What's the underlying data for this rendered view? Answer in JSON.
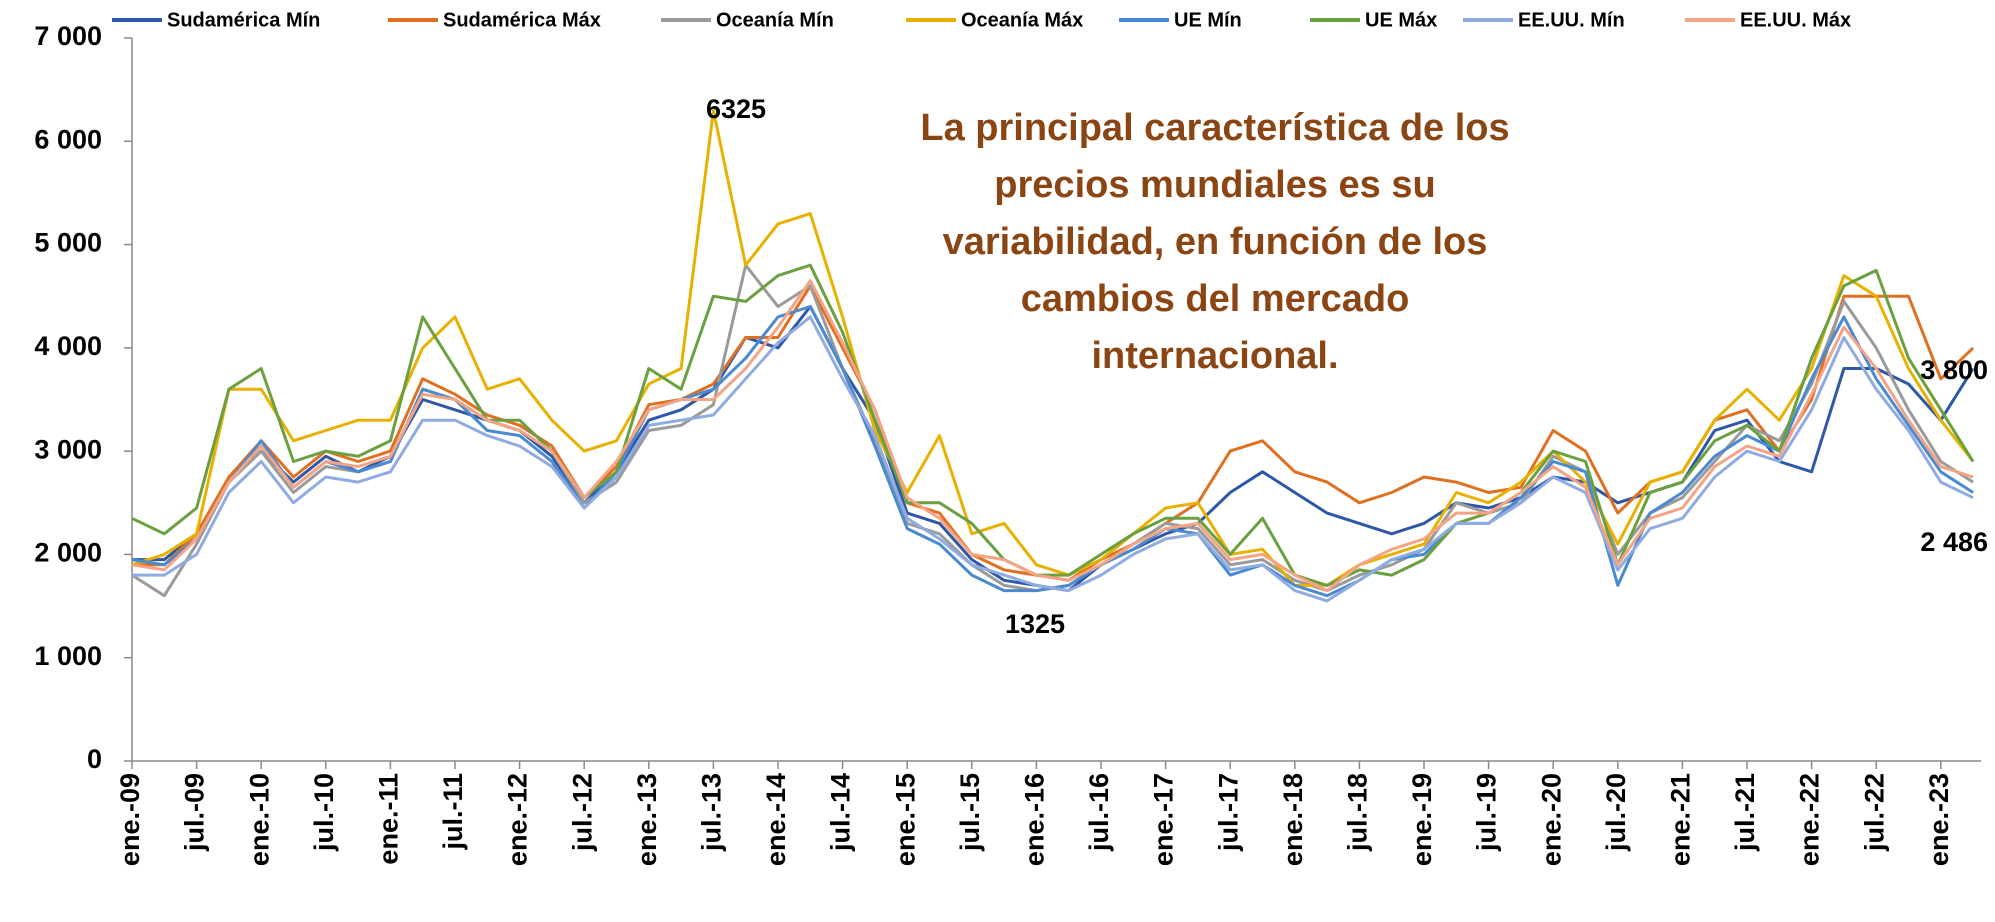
{
  "chart_data": {
    "type": "line",
    "categories": [
      "ene.-09",
      null,
      "jul.-09",
      null,
      "ene.-10",
      null,
      "jul.-10",
      null,
      "ene.-11",
      null,
      "jul.-11",
      null,
      "ene.-12",
      null,
      "jul.-12",
      null,
      "ene.-13",
      null,
      "jul.-13",
      null,
      "ene.-14",
      null,
      "jul.-14",
      null,
      "ene.-15",
      null,
      "jul.-15",
      null,
      "ene.-16",
      null,
      "jul.-16",
      null,
      "ene.-17",
      null,
      "jul.-17",
      null,
      "ene.-18",
      null,
      "jul.-18",
      null,
      "ene.-19",
      null,
      "jul.-19",
      null,
      "ene.-20",
      null,
      "jul.-20",
      null,
      "ene.-21",
      null,
      "jul.-21",
      null,
      "ene.-22",
      null,
      "jul.-22",
      null,
      "ene.-23",
      null
    ],
    "ylim": [
      0,
      7000
    ],
    "yticks": [
      0,
      {
        "value": 1000,
        "label": "1 000"
      },
      {
        "value": 2000,
        "label": "2 000"
      },
      {
        "value": 3000,
        "label": "3 000"
      },
      {
        "value": 4000,
        "label": "4 000"
      },
      {
        "value": 5000,
        "label": "5 000"
      },
      {
        "value": 6000,
        "label": "6 000"
      },
      {
        "value": 7000,
        "label": "7 000"
      }
    ],
    "grid": false,
    "legend": "top",
    "series": [
      {
        "name": "Sudamérica Mín",
        "color": "#2e58a6",
        "values": [
          1950,
          1950,
          2200,
          2700,
          3000,
          2700,
          2950,
          2800,
          2950,
          3500,
          3400,
          3300,
          3200,
          2950,
          2500,
          2800,
          3300,
          3400,
          3600,
          4100,
          4000,
          4400,
          3800,
          3300,
          2400,
          2300,
          1950,
          1750,
          1700,
          1650,
          1900,
          2050,
          2200,
          2300,
          2600,
          2800,
          2600,
          2400,
          2300,
          2200,
          2300,
          2500,
          2450,
          2550,
          2750,
          2700,
          2500,
          2600,
          2700,
          3200,
          3300,
          2900,
          2800,
          3800,
          3800,
          3650,
          3300,
          3800
        ]
      },
      {
        "name": "Sudamérica Máx",
        "color": "#e07020",
        "values": [
          1900,
          1900,
          2200,
          2750,
          3100,
          2750,
          3000,
          2900,
          3000,
          3700,
          3550,
          3350,
          3250,
          3050,
          2550,
          2850,
          3450,
          3500,
          3650,
          4100,
          4100,
          4600,
          4000,
          3400,
          2500,
          2400,
          2000,
          1850,
          1800,
          1750,
          1950,
          2100,
          2300,
          2500,
          3000,
          3100,
          2800,
          2700,
          2500,
          2600,
          2750,
          2700,
          2600,
          2650,
          3200,
          3000,
          2400,
          2700,
          2800,
          3300,
          3400,
          3000,
          3500,
          4500,
          4500,
          4500,
          3700,
          4000
        ]
      },
      {
        "name": "Oceanía Mín",
        "color": "#9a9a9a",
        "values": [
          1800,
          1600,
          2100,
          2700,
          3000,
          2600,
          2850,
          2800,
          2900,
          3600,
          3500,
          3300,
          3200,
          3000,
          2500,
          2700,
          3200,
          3250,
          3450,
          4800,
          4400,
          4600,
          3800,
          3100,
          2300,
          2200,
          1900,
          1700,
          1650,
          1700,
          1900,
          2100,
          2300,
          2250,
          1900,
          1950,
          1750,
          1650,
          1800,
          1900,
          2050,
          2500,
          2400,
          2500,
          2950,
          2800,
          2000,
          2400,
          2550,
          2900,
          3250,
          3100,
          3650,
          4450,
          4000,
          3400,
          2900,
          2700
        ]
      },
      {
        "name": "Oceanía Máx",
        "color": "#e8b000",
        "values": [
          1900,
          2000,
          2200,
          3600,
          3600,
          3100,
          3200,
          3300,
          3300,
          4000,
          4300,
          3600,
          3700,
          3300,
          3000,
          3100,
          3650,
          3800,
          6300,
          4800,
          5200,
          5300,
          4300,
          3200,
          2600,
          3150,
          2200,
          2300,
          1900,
          1800,
          1950,
          2200,
          2450,
          2500,
          2000,
          2050,
          1700,
          1700,
          1900,
          2000,
          2100,
          2600,
          2500,
          2700,
          3000,
          2700,
          2100,
          2700,
          2800,
          3300,
          3600,
          3300,
          3800,
          4700,
          4500,
          3800,
          3300,
          2900
        ]
      },
      {
        "name": "UE Mín",
        "color": "#4a8ad0",
        "values": [
          1950,
          1900,
          2150,
          2700,
          3100,
          2650,
          2900,
          2800,
          2900,
          3600,
          3500,
          3200,
          3150,
          2900,
          2450,
          2800,
          3400,
          3500,
          3600,
          3900,
          4300,
          4400,
          3800,
          3050,
          2250,
          2100,
          1800,
          1650,
          1650,
          1700,
          1900,
          2050,
          2250,
          2200,
          1800,
          1900,
          1700,
          1600,
          1750,
          1950,
          2000,
          2300,
          2300,
          2550,
          2900,
          2800,
          1700,
          2400,
          2600,
          2950,
          3150,
          3000,
          3700,
          4300,
          3700,
          3250,
          2800,
          2600
        ]
      },
      {
        "name": "UE Máx",
        "color": "#6aa040",
        "values": [
          2350,
          2200,
          2450,
          3600,
          3800,
          2900,
          3000,
          2950,
          3100,
          4300,
          3800,
          3300,
          3300,
          3000,
          2550,
          2800,
          3800,
          3600,
          4500,
          4450,
          4700,
          4800,
          4150,
          3300,
          2500,
          2500,
          2300,
          1950,
          1800,
          1800,
          2000,
          2200,
          2350,
          2350,
          2000,
          2350,
          1800,
          1700,
          1850,
          1800,
          1950,
          2300,
          2400,
          2600,
          3000,
          2900,
          1900,
          2600,
          2700,
          3100,
          3250,
          3000,
          3900,
          4600,
          4750,
          3900,
          3400,
          2900
        ]
      },
      {
        "name": "EE.UU. Mín",
        "color": "#8fabe2",
        "values": [
          1800,
          1800,
          2000,
          2600,
          2900,
          2500,
          2750,
          2700,
          2800,
          3300,
          3300,
          3150,
          3050,
          2850,
          2450,
          2750,
          3250,
          3300,
          3350,
          3700,
          4050,
          4300,
          3700,
          3150,
          2350,
          2150,
          1900,
          1800,
          1700,
          1650,
          1800,
          2000,
          2150,
          2200,
          1850,
          1900,
          1650,
          1550,
          1750,
          1950,
          2050,
          2300,
          2300,
          2500,
          2750,
          2600,
          1850,
          2250,
          2350,
          2750,
          3000,
          2900,
          3400,
          4100,
          3600,
          3200,
          2700,
          2550
        ]
      },
      {
        "name": "EE.UU. Máx",
        "color": "#f4a484",
        "values": [
          1900,
          1850,
          2150,
          2700,
          3050,
          2650,
          2900,
          2850,
          2950,
          3550,
          3500,
          3300,
          3200,
          3000,
          2550,
          2900,
          3400,
          3500,
          3500,
          3800,
          4200,
          4650,
          4050,
          3400,
          2550,
          2350,
          2000,
          1950,
          1800,
          1750,
          1900,
          2100,
          2250,
          2300,
          1950,
          2000,
          1800,
          1650,
          1900,
          2050,
          2150,
          2400,
          2400,
          2600,
          2850,
          2650,
          1900,
          2350,
          2450,
          2850,
          3050,
          2950,
          3550,
          4200,
          3800,
          3300,
          2850,
          2750
        ]
      }
    ],
    "annotations": [
      "6325",
      "1325",
      "3 800",
      "2 486"
    ],
    "note_lines": [
      "La principal característica de los",
      "precios mundiales es su",
      "variabilidad, en función de los",
      "cambios del mercado",
      "internacional."
    ]
  }
}
